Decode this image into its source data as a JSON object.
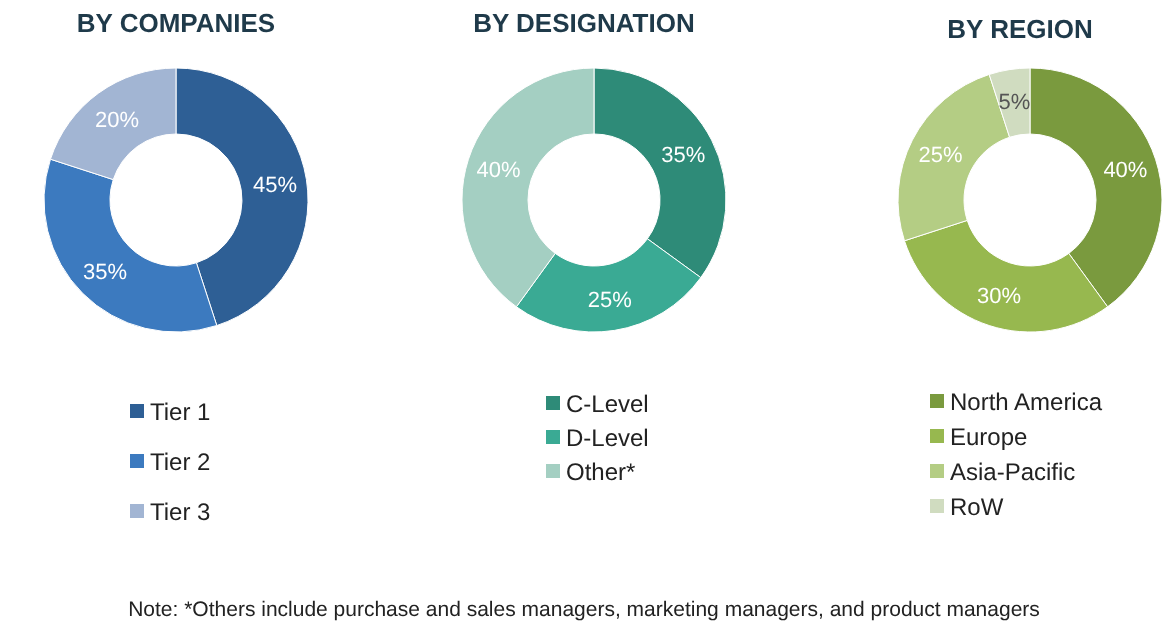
{
  "chart_data": [
    {
      "type": "donut",
      "title": "BY COMPANIES",
      "categories": [
        "Tier 1",
        "Tier 2",
        "Tier 3"
      ],
      "values": [
        45,
        35,
        20
      ],
      "value_labels": [
        "45%",
        "35%",
        "20%"
      ],
      "colors": [
        "#2e5f95",
        "#3c7abf",
        "#a2b5d3"
      ],
      "legend": "bottom"
    },
    {
      "type": "donut",
      "title": "BY DESIGNATION",
      "categories": [
        "C-Level",
        "D-Level",
        "Other*"
      ],
      "values": [
        35,
        25,
        40
      ],
      "value_labels": [
        "35%",
        "25%",
        "40%"
      ],
      "colors": [
        "#2e8b78",
        "#3aaa94",
        "#a4cfc2"
      ],
      "legend": "bottom"
    },
    {
      "type": "donut",
      "title": "BY REGION",
      "categories": [
        "North America",
        "Europe",
        "Asia-Pacific",
        "RoW"
      ],
      "values": [
        40,
        30,
        25,
        5
      ],
      "value_labels": [
        "40%",
        "30%",
        "25%",
        "5%"
      ],
      "colors": [
        "#7a9a3e",
        "#97b84f",
        "#b4cd84",
        "#d0dcc0"
      ],
      "legend": "bottom",
      "annotations": [
        "Note: *Others include purchase and sales managers, marketing managers, and product managers"
      ]
    }
  ]
}
